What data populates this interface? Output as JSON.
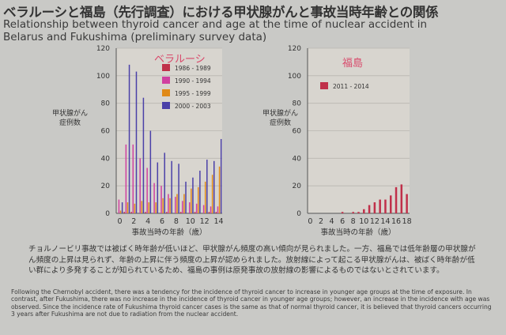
{
  "title_ja": "ベラルーシと福島（先行調査）における甲状腺がんと事故当時年齢との関係",
  "title_en": "Relationship between thyroid cancer and age at the time of nuclear accident in Belarus and Fukushima (preliminary survey data)",
  "description_ja": "チョルノービリ事故では被ばく時年齢が低いほど、甲状腺がん頻度の高い傾向が見られました。一方、福島では低年齢層の甲状腺がん頻度の上昇は見られず、年齢の上昇に伴う頻度の上昇が認められました。放射線によって起こる甲状腺がんは、被ばく時年齢が低い群により多発することが知られているため、福島の事例は原発事故の放射線の影響によるものではないとされています。",
  "description_en": "Following the Chernobyl accident, there was a tendency for the incidence of thyroid cancer to increase in younger age groups at the time of exposure. In contrast, after Fukushima, there was no increase in the incidence of thyroid cancer in younger age groups; however, an increase in the incidence with age was observed. Since the incidence rate of Fukushima thyroid cancer cases is the same as that of normal thyroid cancer, it is believed that thyroid cancers occurring 3 years after Fukushima are not due to radiation from the nuclear accident.",
  "chart_data": [
    {
      "type": "bar",
      "title": "ベラルーシ",
      "ylabel": "甲状腺がん\n症例数",
      "xlabel": "事故当時の年齢（歳）",
      "ylim": [
        0,
        120
      ],
      "yticks": [
        0,
        20,
        40,
        60,
        80,
        100,
        120
      ],
      "xticks": [
        0,
        2,
        4,
        6,
        8,
        10,
        12,
        14
      ],
      "categories": [
        0,
        1,
        2,
        3,
        4,
        5,
        6,
        7,
        8,
        9,
        10,
        11,
        12,
        13,
        14
      ],
      "legend_position": "top-right",
      "series": [
        {
          "name": "1986 - 1989",
          "color": "#c0304a",
          "values": [
            0,
            1,
            1,
            0,
            1,
            0,
            0,
            1,
            0,
            1,
            0,
            1,
            0,
            1,
            1
          ]
        },
        {
          "name": "1990 - 1994",
          "color": "#d040a0",
          "values": [
            10,
            50,
            50,
            40,
            33,
            22,
            20,
            14,
            12,
            9,
            8,
            7,
            6,
            5,
            5
          ]
        },
        {
          "name": "1995 - 1999",
          "color": "#e08a18",
          "values": [
            2,
            8,
            7,
            9,
            8,
            8,
            11,
            11,
            14,
            14,
            18,
            19,
            23,
            28,
            34
          ]
        },
        {
          "name": "2000 - 2003",
          "color": "#4a40a8",
          "values": [
            8,
            108,
            103,
            84,
            60,
            37,
            44,
            38,
            36,
            23,
            26,
            31,
            39,
            38,
            54
          ]
        }
      ]
    },
    {
      "type": "bar",
      "title": "福島",
      "ylabel": "甲状腺がん\n症例数",
      "xlabel": "事故当時の年齢（歳）",
      "ylim": [
        0,
        120
      ],
      "yticks": [
        0,
        20,
        40,
        60,
        80,
        100,
        120
      ],
      "xticks": [
        0,
        2,
        4,
        6,
        8,
        10,
        12,
        14,
        16,
        18
      ],
      "categories": [
        0,
        1,
        2,
        3,
        4,
        5,
        6,
        7,
        8,
        9,
        10,
        11,
        12,
        13,
        14,
        15,
        16,
        17,
        18
      ],
      "legend_position": "top-left",
      "series": [
        {
          "name": "2011 - 2014",
          "color": "#c0304a",
          "values": [
            0,
            0,
            0,
            0,
            0,
            0,
            1,
            0,
            1,
            1,
            3,
            6,
            8,
            10,
            10,
            13,
            19,
            21,
            14
          ]
        }
      ]
    }
  ]
}
